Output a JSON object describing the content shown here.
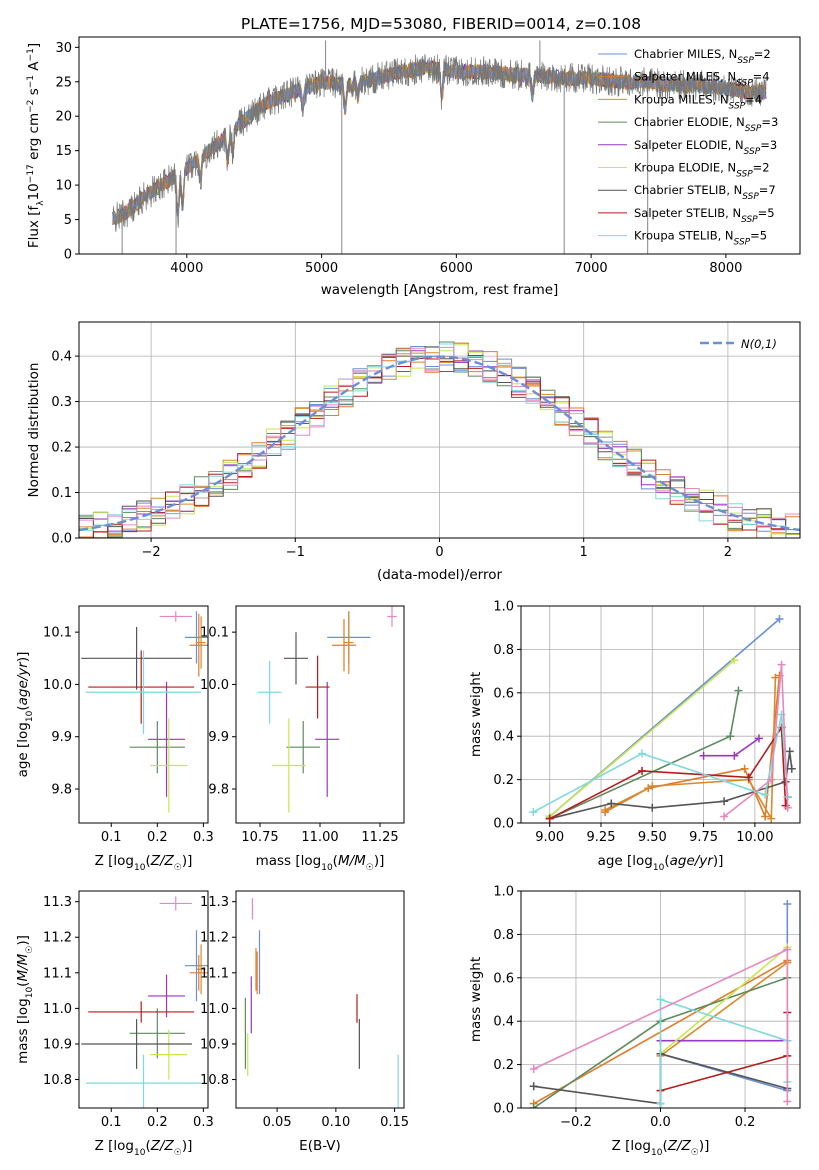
{
  "figure": {
    "title": "PLATE=1756, MJD=53080, FIBERID=0014, z=0.108"
  },
  "models": [
    {
      "key": "chab_miles",
      "name": "Chabrier MILES",
      "nssp": "2",
      "color": "#6a8fd8"
    },
    {
      "key": "salp_miles",
      "name": "Salpeter MILES",
      "nssp": "4",
      "color": "#e07b2a"
    },
    {
      "key": "krou_miles",
      "name": "Kroupa MILES",
      "nssp": "4",
      "color": "#d88a2a"
    },
    {
      "key": "chab_elodie",
      "name": "Chabrier ELODIE",
      "nssp": "3",
      "color": "#5e8a5e"
    },
    {
      "key": "salp_elodie",
      "name": "Salpeter ELODIE",
      "nssp": "3",
      "color": "#9a36c0"
    },
    {
      "key": "krou_elodie",
      "name": "Kroupa ELODIE",
      "nssp": "2",
      "color": "#c8e650"
    },
    {
      "key": "chab_stelib",
      "name": "Chabrier STELIB",
      "nssp": "7",
      "color": "#555555"
    },
    {
      "key": "salp_stelib",
      "name": "Salpeter STELIB",
      "nssp": "5",
      "color": "#b51c1c"
    },
    {
      "key": "krou_stelib",
      "name": "Kroupa STELIB",
      "nssp": "5",
      "color": "#7fd8dc"
    }
  ],
  "chart_data": [
    {
      "id": "spectrum",
      "type": "line",
      "title": "PLATE=1756, MJD=53080, FIBERID=0014, z=0.108",
      "xlabel": "wavelength [Angstrom, rest frame]",
      "ylabel": "Flux [f_λ10^-17 erg cm^-2 s^-1 A^-1]",
      "xlim": [
        3200,
        8550
      ],
      "ylim": [
        0,
        31.5
      ],
      "xticks": [
        4000,
        5000,
        6000,
        7000,
        8000
      ],
      "yticks": [
        0,
        5,
        10,
        15,
        20,
        25,
        30
      ],
      "legend": "upper right",
      "spectrum_continuum": {
        "x": [
          3450,
          3550,
          3700,
          3850,
          4000,
          4200,
          4400,
          4600,
          4800,
          5000,
          5200,
          5400,
          5600,
          5800,
          6000,
          6200,
          6400,
          6600,
          6800,
          7000,
          7200,
          7400,
          7600,
          7800,
          8000,
          8200,
          8300
        ],
        "y": [
          5.0,
          6.0,
          8.5,
          10.5,
          12.5,
          15.5,
          19.0,
          22.0,
          23.5,
          25.0,
          24.5,
          25.5,
          26.5,
          27.0,
          26.5,
          26.5,
          26.0,
          26.0,
          25.5,
          25.5,
          25.0,
          25.0,
          24.5,
          24.5,
          24.0,
          23.5,
          23.5
        ]
      },
      "absorption_features": [
        {
          "x": 3934,
          "depth": 6.0
        },
        {
          "x": 3969,
          "depth": 5.0
        },
        {
          "x": 4102,
          "depth": 3.0
        },
        {
          "x": 4304,
          "depth": 4.0
        },
        {
          "x": 4341,
          "depth": 3.0
        },
        {
          "x": 4861,
          "depth": 2.5
        },
        {
          "x": 5175,
          "depth": 3.5
        },
        {
          "x": 5270,
          "depth": 2.0
        },
        {
          "x": 5892,
          "depth": 4.0
        },
        {
          "x": 6563,
          "depth": 3.0
        }
      ],
      "spikes": [
        {
          "x": 3520,
          "y": 0.0
        },
        {
          "x": 3920,
          "y": 0.0
        },
        {
          "x": 5150,
          "y": 0.0
        },
        {
          "x": 6800,
          "y": 0.0
        },
        {
          "x": 7420,
          "y": 0.0
        },
        {
          "x": 5030,
          "y": 31.0
        },
        {
          "x": 6620,
          "y": 31.0
        }
      ]
    },
    {
      "id": "residuals",
      "type": "line",
      "xlabel": "(data-model)/error",
      "ylabel": "Normed distribution",
      "xlim": [
        -2.5,
        2.5
      ],
      "ylim": [
        0,
        0.475
      ],
      "xticks": [
        -2,
        -1,
        0,
        1,
        2
      ],
      "yticks": [
        0.0,
        0.1,
        0.2,
        0.3,
        0.4
      ],
      "grid": true,
      "legend": "upper right",
      "reference": {
        "label": "N(0,1)",
        "color": "#6a8fd8",
        "style": "dashed",
        "sigma": 1.0
      },
      "bin_width": 0.1
    },
    {
      "id": "age_vs_z",
      "type": "scatter",
      "xlabel": "Z [log10(Z/Z☉)]",
      "ylabel": "age [log10(age/yr)]",
      "xlim": [
        0.03,
        0.31
      ],
      "ylim": [
        9.735,
        10.15
      ],
      "xticks": [
        0.1,
        0.2,
        0.3
      ],
      "yticks": [
        9.8,
        9.9,
        10.0,
        10.1
      ],
      "points": [
        {
          "model": "chab_miles",
          "x": 0.285,
          "y": 10.09,
          "xerr": 0.025,
          "yerr": 0.05
        },
        {
          "model": "salp_miles",
          "x": 0.29,
          "y": 10.075,
          "xerr": 0.02,
          "yerr": 0.06
        },
        {
          "model": "krou_miles",
          "x": 0.295,
          "y": 10.08,
          "xerr": 0.01,
          "yerr": 0.05
        },
        {
          "model": "chab_elodie",
          "x": 0.2,
          "y": 9.88,
          "xerr": 0.06,
          "yerr": 0.05
        },
        {
          "model": "salp_elodie",
          "x": 0.22,
          "y": 9.895,
          "xerr": 0.04,
          "yerr": 0.11
        },
        {
          "model": "krou_elodie",
          "x": 0.225,
          "y": 9.845,
          "xerr": 0.04,
          "yerr": 0.09
        },
        {
          "model": "chab_stelib",
          "x": 0.155,
          "y": 10.05,
          "xerr": 0.12,
          "yerr": 0.06
        },
        {
          "model": "salp_stelib",
          "x": 0.165,
          "y": 9.995,
          "xerr": 0.115,
          "yerr": 0.07
        },
        {
          "model": "krou_stelib",
          "x": 0.17,
          "y": 9.985,
          "xerr": 0.125,
          "yerr": 0.08
        },
        {
          "model": "pink",
          "x": 0.24,
          "y": 10.13,
          "xerr": 0.035,
          "yerr": 0.01
        }
      ]
    },
    {
      "id": "age_vs_mass",
      "type": "scatter",
      "xlabel": "mass [log10(M/M☉)]",
      "ylabel": "",
      "xlim": [
        10.65,
        11.35
      ],
      "ylim": [
        9.735,
        10.15
      ],
      "xticks": [
        10.75,
        11.0,
        11.25
      ],
      "yticks": [
        9.8,
        9.9,
        10.0,
        10.1
      ],
      "points": [
        {
          "model": "chab_miles",
          "x": 11.12,
          "y": 10.09,
          "xerr": 0.09,
          "yerr": 0.05
        },
        {
          "model": "salp_miles",
          "x": 11.1,
          "y": 10.075,
          "xerr": 0.05,
          "yerr": 0.05
        },
        {
          "model": "krou_miles",
          "x": 11.12,
          "y": 10.08,
          "xerr": 0.02,
          "yerr": 0.06
        },
        {
          "model": "chab_elodie",
          "x": 10.93,
          "y": 9.88,
          "xerr": 0.07,
          "yerr": 0.05
        },
        {
          "model": "salp_elodie",
          "x": 11.03,
          "y": 9.895,
          "xerr": 0.05,
          "yerr": 0.11
        },
        {
          "model": "krou_elodie",
          "x": 10.87,
          "y": 9.845,
          "xerr": 0.07,
          "yerr": 0.09
        },
        {
          "model": "chab_stelib",
          "x": 10.9,
          "y": 10.05,
          "xerr": 0.05,
          "yerr": 0.05
        },
        {
          "model": "salp_stelib",
          "x": 10.99,
          "y": 9.995,
          "xerr": 0.05,
          "yerr": 0.06
        },
        {
          "model": "krou_stelib",
          "x": 10.79,
          "y": 9.985,
          "xerr": 0.05,
          "yerr": 0.06
        },
        {
          "model": "pink",
          "x": 11.3,
          "y": 10.13,
          "xerr": 0.02,
          "yerr": 0.02
        }
      ]
    },
    {
      "id": "weight_vs_age",
      "type": "line",
      "xlabel": "age [log10(age/yr)]",
      "ylabel": "mass weight",
      "xlim": [
        8.86,
        10.22
      ],
      "ylim": [
        0,
        1.0
      ],
      "xticks": [
        9.0,
        9.25,
        9.5,
        9.75,
        10.0
      ],
      "yticks": [
        0.0,
        0.2,
        0.4,
        0.6,
        0.8,
        1.0
      ],
      "grid": true,
      "series": [
        {
          "model": "chab_miles",
          "x": [
            9.0,
            10.12
          ],
          "y": [
            0.03,
            0.94
          ]
        },
        {
          "model": "salp_miles",
          "x": [
            9.27,
            9.48,
            9.95,
            10.05,
            10.12
          ],
          "y": [
            0.05,
            0.16,
            0.25,
            0.03,
            0.68
          ]
        },
        {
          "model": "krou_miles",
          "x": [
            9.27,
            9.5,
            9.97,
            10.08,
            10.1
          ],
          "y": [
            0.06,
            0.17,
            0.2,
            0.02,
            0.67
          ]
        },
        {
          "model": "chab_elodie",
          "x": [
            9.0,
            9.88,
            9.92
          ],
          "y": [
            0.02,
            0.4,
            0.61
          ]
        },
        {
          "model": "salp_elodie",
          "x": [
            9.75,
            9.9,
            10.02
          ],
          "y": [
            0.31,
            0.31,
            0.39
          ]
        },
        {
          "model": "krou_elodie",
          "x": [
            9.0,
            9.9
          ],
          "y": [
            0.03,
            0.75
          ]
        },
        {
          "model": "chab_stelib",
          "x": [
            9.0,
            9.3,
            9.5,
            9.85,
            10.15,
            10.17,
            10.18
          ],
          "y": [
            0.02,
            0.09,
            0.07,
            0.1,
            0.19,
            0.33,
            0.25
          ]
        },
        {
          "model": "salp_stelib",
          "x": [
            9.0,
            9.45,
            9.97,
            10.13,
            10.15,
            10.16
          ],
          "y": [
            0.02,
            0.24,
            0.21,
            0.44,
            0.08,
            0.12
          ]
        },
        {
          "model": "krou_stelib",
          "x": [
            8.92,
            9.45,
            10.05,
            10.13,
            10.16
          ],
          "y": [
            0.05,
            0.32,
            0.13,
            0.5,
            0.12
          ]
        },
        {
          "model": "pink",
          "x": [
            9.85,
            10.08,
            10.13,
            10.16
          ],
          "y": [
            0.03,
            0.2,
            0.73,
            0.07
          ]
        }
      ]
    },
    {
      "id": "mass_vs_z",
      "type": "scatter",
      "xlabel": "Z [log10(Z/Z☉)]",
      "ylabel": "mass [log10(M/M☉)]",
      "xlim": [
        0.03,
        0.31
      ],
      "ylim": [
        10.72,
        11.33
      ],
      "xticks": [
        0.1,
        0.2,
        0.3
      ],
      "yticks": [
        10.8,
        10.9,
        11.0,
        11.1,
        11.2,
        11.3
      ],
      "points": [
        {
          "model": "chab_miles",
          "x": 0.285,
          "y": 11.12,
          "xerr": 0.025,
          "yerr": 0.1
        },
        {
          "model": "salp_miles",
          "x": 0.29,
          "y": 11.1,
          "xerr": 0.02,
          "yerr": 0.05
        },
        {
          "model": "krou_miles",
          "x": 0.295,
          "y": 11.11,
          "xerr": 0.01,
          "yerr": 0.07
        },
        {
          "model": "chab_elodie",
          "x": 0.2,
          "y": 10.93,
          "xerr": 0.06,
          "yerr": 0.07
        },
        {
          "model": "salp_elodie",
          "x": 0.22,
          "y": 11.035,
          "xerr": 0.04,
          "yerr": 0.06
        },
        {
          "model": "krou_elodie",
          "x": 0.225,
          "y": 10.87,
          "xerr": 0.04,
          "yerr": 0.07
        },
        {
          "model": "chab_stelib",
          "x": 0.155,
          "y": 10.9,
          "xerr": 0.12,
          "yerr": 0.07
        },
        {
          "model": "salp_stelib",
          "x": 0.165,
          "y": 10.99,
          "xerr": 0.115,
          "yerr": 0.03
        },
        {
          "model": "krou_stelib",
          "x": 0.17,
          "y": 10.79,
          "xerr": 0.125,
          "yerr": 0.08
        },
        {
          "model": "pink",
          "x": 0.24,
          "y": 11.295,
          "xerr": 0.035,
          "yerr": 0.02
        }
      ]
    },
    {
      "id": "mass_vs_ebv",
      "type": "scatter",
      "xlabel": "E(B-V)",
      "ylabel": "",
      "xlim": [
        0.015,
        0.158
      ],
      "ylim": [
        10.72,
        11.33
      ],
      "xticks": [
        0.05,
        0.1,
        0.15
      ],
      "yticks": [
        10.8,
        10.9,
        11.0,
        11.1,
        11.2,
        11.3
      ],
      "points": [
        {
          "model": "chab_miles",
          "x": 0.035,
          "y": 11.13,
          "xerr": 0.0,
          "yerr": 0.09
        },
        {
          "model": "salp_miles",
          "x": 0.033,
          "y": 11.1,
          "xerr": 0.0,
          "yerr": 0.06
        },
        {
          "model": "krou_miles",
          "x": 0.032,
          "y": 11.11,
          "xerr": 0.0,
          "yerr": 0.06
        },
        {
          "model": "chab_elodie",
          "x": 0.023,
          "y": 10.93,
          "xerr": 0.0,
          "yerr": 0.1
        },
        {
          "model": "salp_elodie",
          "x": 0.028,
          "y": 11.01,
          "xerr": 0.0,
          "yerr": 0.08
        },
        {
          "model": "krou_elodie",
          "x": 0.025,
          "y": 10.87,
          "xerr": 0.0,
          "yerr": 0.06
        },
        {
          "model": "chab_stelib",
          "x": 0.12,
          "y": 10.9,
          "xerr": 0.0,
          "yerr": 0.07
        },
        {
          "model": "salp_stelib",
          "x": 0.118,
          "y": 11.0,
          "xerr": 0.0,
          "yerr": 0.04
        },
        {
          "model": "krou_stelib",
          "x": 0.153,
          "y": 10.79,
          "xerr": 0.0,
          "yerr": 0.08
        },
        {
          "model": "pink",
          "x": 0.029,
          "y": 11.28,
          "xerr": 0.0,
          "yerr": 0.03
        }
      ]
    },
    {
      "id": "weight_vs_z",
      "type": "line",
      "xlabel": "Z [log10(Z/Z☉)]",
      "ylabel": "mass weight",
      "xlim": [
        -0.33,
        0.33
      ],
      "ylim": [
        0,
        1.0
      ],
      "xticks": [
        -0.2,
        0.0,
        0.2
      ],
      "yticks": [
        0.0,
        0.2,
        0.4,
        0.6,
        0.8,
        1.0
      ],
      "grid": true,
      "series": [
        {
          "model": "chab_miles",
          "x": [
            0.0,
            0.3,
            0.3
          ],
          "y": [
            0.25,
            0.08,
            0.94
          ]
        },
        {
          "model": "salp_miles",
          "x": [
            -0.3,
            0.3
          ],
          "y": [
            0.02,
            0.68
          ]
        },
        {
          "model": "krou_miles",
          "x": [
            0.0,
            0.3
          ],
          "y": [
            0.24,
            0.67
          ]
        },
        {
          "model": "chab_elodie",
          "x": [
            -0.3,
            0.0,
            0.3
          ],
          "y": [
            0.0,
            0.4,
            0.6
          ]
        },
        {
          "model": "salp_elodie",
          "x": [
            0.0,
            0.3
          ],
          "y": [
            0.31,
            0.31
          ]
        },
        {
          "model": "krou_elodie",
          "x": [
            0.0,
            0.3
          ],
          "y": [
            0.25,
            0.74
          ]
        },
        {
          "model": "chab_stelib",
          "x": [
            -0.3,
            0.0,
            0.0,
            0.3
          ],
          "y": [
            0.1,
            0.02,
            0.25,
            0.09
          ]
        },
        {
          "model": "salp_stelib",
          "x": [
            0.0,
            0.3,
            0.3
          ],
          "y": [
            0.08,
            0.24,
            0.44
          ]
        },
        {
          "model": "krou_stelib",
          "x": [
            0.0,
            0.0,
            0.3,
            0.3
          ],
          "y": [
            0.02,
            0.5,
            0.31,
            0.12
          ]
        },
        {
          "model": "pink",
          "x": [
            -0.3,
            0.3,
            0.3
          ],
          "y": [
            0.18,
            0.73,
            0.03
          ]
        }
      ]
    }
  ]
}
